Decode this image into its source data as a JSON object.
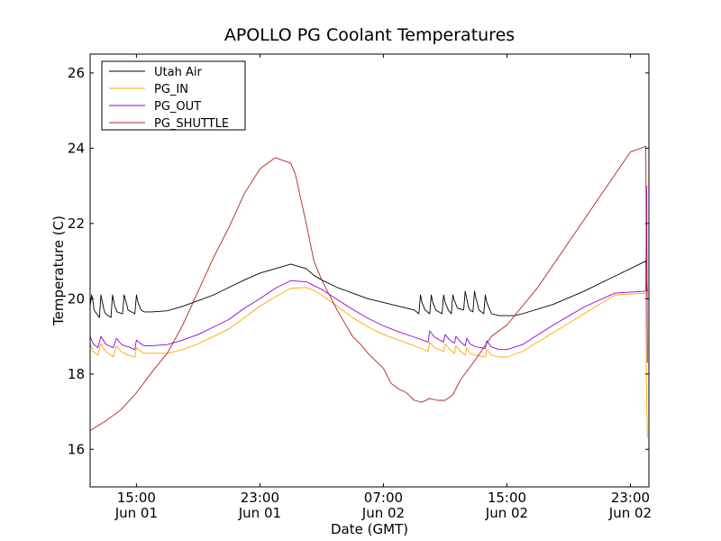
{
  "chart_data": {
    "type": "line",
    "title": "APOLLO PG Coolant Temperatures",
    "xlabel": "Date (GMT)",
    "ylabel": "Temperature (C)",
    "x_unit": "hours since Jun 01 11:00 GMT",
    "xlim": [
      0,
      36.2
    ],
    "ylim": [
      15,
      26.5
    ],
    "y_ticks": [
      {
        "value": 16,
        "label": "16"
      },
      {
        "value": 18,
        "label": "18"
      },
      {
        "value": 20,
        "label": "20"
      },
      {
        "value": 22,
        "label": "22"
      },
      {
        "value": 24,
        "label": "24"
      },
      {
        "value": 26,
        "label": "26"
      }
    ],
    "x_ticks": [
      {
        "value": 3,
        "time": "15:00",
        "date": "Jun 01"
      },
      {
        "value": 11,
        "time": "23:00",
        "date": "Jun 01"
      },
      {
        "value": 19,
        "time": "07:00",
        "date": "Jun 02"
      },
      {
        "value": 27,
        "time": "15:00",
        "date": "Jun 02"
      },
      {
        "value": 35,
        "time": "23:00",
        "date": "Jun 02"
      }
    ],
    "legend": {
      "placement": "top-left"
    },
    "series": [
      {
        "name": "Utah Air",
        "color": "#000000",
        "x": [
          0,
          0.1,
          0.2,
          0.25,
          0.6,
          0.7,
          0.8,
          0.9,
          1.0,
          1.35,
          1.45,
          1.55,
          1.6,
          1.7,
          1.75,
          2.1,
          2.2,
          2.3,
          2.4,
          2.45,
          2.9,
          3.0,
          3.1,
          3.2,
          3.3,
          3.5,
          4.0,
          5.0,
          6.0,
          7.0,
          8.0,
          9.0,
          10.0,
          11.0,
          12.0,
          13.0,
          14.0,
          14.5,
          15.0,
          16.0,
          17.0,
          18.0,
          19.0,
          20.0,
          21.0,
          21.3,
          21.4,
          21.5,
          21.6,
          21.7,
          22.0,
          22.1,
          22.2,
          22.3,
          22.4,
          22.8,
          22.9,
          23.0,
          23.1,
          23.2,
          23.4,
          23.5,
          23.6,
          23.7,
          23.8,
          24.2,
          24.3,
          24.4,
          24.5,
          24.6,
          24.8,
          24.9,
          25.0,
          25.1,
          25.2,
          25.5,
          25.6,
          25.7,
          25.8,
          25.9,
          26.0,
          26.5,
          27.0,
          27.5,
          28.0,
          30.0,
          32.0,
          34.0,
          36.0,
          36.05,
          36.1
        ],
        "values": [
          19.8,
          20.1,
          19.9,
          19.7,
          19.5,
          20.1,
          19.9,
          19.7,
          19.6,
          19.5,
          20.1,
          19.9,
          19.8,
          19.7,
          19.65,
          19.6,
          20.1,
          19.95,
          19.8,
          19.7,
          19.6,
          20.1,
          19.9,
          19.8,
          19.7,
          19.65,
          19.65,
          19.68,
          19.8,
          19.95,
          20.1,
          20.3,
          20.5,
          20.68,
          20.8,
          20.92,
          20.8,
          20.62,
          20.5,
          20.3,
          20.15,
          20.0,
          19.9,
          19.8,
          19.7,
          19.6,
          20.1,
          19.9,
          19.8,
          19.7,
          19.6,
          20.1,
          19.9,
          19.8,
          19.7,
          19.6,
          20.1,
          19.9,
          19.8,
          19.7,
          19.6,
          20.1,
          19.95,
          19.85,
          19.75,
          19.7,
          20.2,
          20.0,
          19.8,
          19.7,
          19.65,
          20.2,
          20.0,
          19.85,
          19.7,
          19.6,
          20.1,
          19.9,
          19.8,
          19.7,
          19.6,
          19.55,
          19.55,
          19.55,
          19.6,
          19.85,
          20.2,
          20.6,
          21.0,
          20.5,
          20.2
        ]
      },
      {
        "name": "PG_IN",
        "color": "#ffa500",
        "x": [
          0,
          0.2,
          0.5,
          0.7,
          1.0,
          1.2,
          1.5,
          1.7,
          2.0,
          2.2,
          2.5,
          2.9,
          3.0,
          3.3,
          3.5,
          4.0,
          5.0,
          6.0,
          7.0,
          8.0,
          9.0,
          10.0,
          11.0,
          12.0,
          13.0,
          14.0,
          14.5,
          15.0,
          16.0,
          17.0,
          18.0,
          19.0,
          20.0,
          21.0,
          21.9,
          22.0,
          22.3,
          22.9,
          23.0,
          23.3,
          23.6,
          23.7,
          24.0,
          24.3,
          24.4,
          24.6,
          25.0,
          25.6,
          25.7,
          26.0,
          26.5,
          27.0,
          28.0,
          30.0,
          32.0,
          34.0,
          36.0,
          36.05,
          36.1
        ],
        "values": [
          18.8,
          18.6,
          18.5,
          18.8,
          18.6,
          18.55,
          18.45,
          18.75,
          18.6,
          18.55,
          18.5,
          18.45,
          18.7,
          18.6,
          18.55,
          18.55,
          18.55,
          18.65,
          18.8,
          19.0,
          19.2,
          19.5,
          19.8,
          20.05,
          20.28,
          20.3,
          20.22,
          20.1,
          19.8,
          19.5,
          19.25,
          19.05,
          18.9,
          18.75,
          18.6,
          18.85,
          18.7,
          18.6,
          18.8,
          18.65,
          18.55,
          18.75,
          18.6,
          18.5,
          18.7,
          18.55,
          18.5,
          18.45,
          18.65,
          18.5,
          18.45,
          18.45,
          18.6,
          19.1,
          19.6,
          20.1,
          20.15,
          17.5,
          16.3
        ]
      },
      {
        "name": "PG_OUT",
        "color": "#9400d3",
        "x": [
          0,
          0.2,
          0.5,
          0.7,
          1.0,
          1.2,
          1.5,
          1.7,
          2.0,
          2.2,
          2.5,
          2.9,
          3.0,
          3.3,
          3.5,
          4.0,
          5.0,
          6.0,
          7.0,
          8.0,
          9.0,
          10.0,
          11.0,
          12.0,
          13.0,
          14.0,
          14.5,
          15.0,
          16.0,
          17.0,
          18.0,
          19.0,
          20.0,
          21.0,
          21.9,
          22.0,
          22.3,
          22.9,
          23.0,
          23.3,
          23.6,
          23.7,
          24.0,
          24.3,
          24.4,
          24.6,
          25.0,
          25.6,
          25.7,
          26.0,
          26.5,
          27.0,
          28.0,
          30.0,
          32.0,
          34.0,
          36.0,
          36.05,
          36.1
        ],
        "values": [
          19.0,
          18.8,
          18.7,
          19.0,
          18.8,
          18.75,
          18.7,
          18.95,
          18.8,
          18.75,
          18.72,
          18.65,
          18.9,
          18.8,
          18.75,
          18.75,
          18.78,
          18.9,
          19.05,
          19.25,
          19.45,
          19.75,
          20.0,
          20.28,
          20.48,
          20.45,
          20.35,
          20.25,
          19.98,
          19.72,
          19.48,
          19.28,
          19.12,
          18.98,
          18.85,
          19.15,
          18.98,
          18.85,
          19.05,
          18.9,
          18.82,
          19.0,
          18.85,
          18.75,
          18.95,
          18.8,
          18.72,
          18.68,
          18.88,
          18.72,
          18.65,
          18.65,
          18.78,
          19.3,
          19.78,
          20.15,
          20.2,
          23.0,
          18.3
        ]
      },
      {
        "name": "PG_SHUTTLE",
        "color": "#b22222",
        "x": [
          0,
          1.0,
          2.0,
          3.0,
          4.0,
          5.0,
          6.0,
          7.0,
          8.0,
          9.0,
          10.0,
          11.0,
          12.0,
          13.0,
          13.3,
          14.0,
          14.5,
          15.0,
          16.0,
          17.0,
          17.5,
          18.0,
          18.5,
          19.0,
          19.5,
          20.0,
          20.5,
          21.0,
          21.5,
          22.0,
          22.5,
          23.0,
          23.5,
          24.0,
          25.0,
          26.0,
          27.0,
          28.0,
          29.0,
          30.0,
          31.0,
          32.0,
          33.0,
          34.0,
          35.0,
          36.0,
          36.05,
          36.1
        ],
        "values": [
          16.5,
          16.75,
          17.05,
          17.5,
          18.05,
          18.55,
          19.3,
          20.2,
          21.1,
          21.9,
          22.8,
          23.45,
          23.75,
          23.6,
          23.3,
          22.0,
          21.0,
          20.5,
          19.7,
          19.0,
          18.8,
          18.55,
          18.35,
          18.15,
          17.75,
          17.6,
          17.5,
          17.3,
          17.25,
          17.35,
          17.3,
          17.3,
          17.45,
          17.85,
          18.4,
          19.0,
          19.3,
          19.8,
          20.3,
          20.9,
          21.5,
          22.1,
          22.7,
          23.3,
          23.9,
          24.05,
          20.2,
          20.0
        ]
      }
    ]
  }
}
